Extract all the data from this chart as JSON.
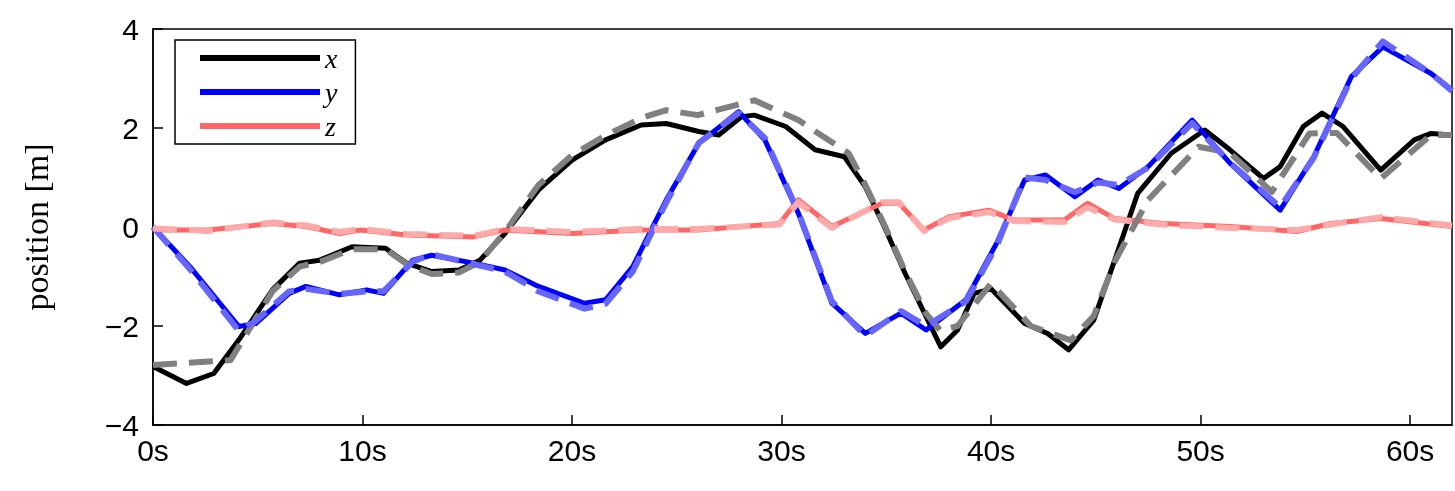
{
  "chart_data": {
    "type": "line",
    "ylabel": "position [m]",
    "xlim": [
      0,
      62
    ],
    "ylim": [
      -4,
      4
    ],
    "xticks": [
      {
        "value": 0,
        "label": "0s"
      },
      {
        "value": 10,
        "label": "10s"
      },
      {
        "value": 20,
        "label": "20s"
      },
      {
        "value": 30,
        "label": "30s"
      },
      {
        "value": 40,
        "label": "40s"
      },
      {
        "value": 50,
        "label": "50s"
      },
      {
        "value": 60,
        "label": "60s"
      }
    ],
    "yticks": [
      {
        "value": -4,
        "label": "−4"
      },
      {
        "value": -2,
        "label": "−2"
      },
      0,
      2,
      4
    ],
    "grid": false,
    "legend": "top left",
    "marker": "none",
    "series": [
      {
        "name": "x",
        "color": "#000000",
        "line_style": "solid",
        "x": [
          0,
          1.6,
          2.9,
          4.1,
          5.7,
          7,
          7.95,
          9.5,
          11.1,
          12.1,
          13.3,
          14.6,
          15.6,
          16.8,
          18.4,
          20,
          21.6,
          23.3,
          24.5,
          26.05,
          27,
          28.1,
          28.7,
          30.2,
          31.6,
          33,
          34,
          34.9,
          35.9,
          36.9,
          37.6,
          38.4,
          39.2,
          40,
          41.6,
          42.7,
          43.7,
          44.9,
          45.9,
          47,
          48.6,
          50.2,
          51.4,
          53,
          53.8,
          54.9,
          55.8,
          56.8,
          58.6,
          60.2,
          61,
          62
        ],
        "values": [
          -2.82,
          -3.16,
          -2.96,
          -2.28,
          -1.27,
          -0.73,
          -0.67,
          -0.4,
          -0.43,
          -0.73,
          -0.9,
          -0.87,
          -0.67,
          -0.13,
          0.75,
          1.35,
          1.76,
          2.06,
          2.09,
          1.93,
          1.86,
          2.23,
          2.26,
          2.03,
          1.56,
          1.42,
          0.81,
          0.01,
          -0.94,
          -1.81,
          -2.42,
          -2.08,
          -1.34,
          -1.25,
          -1.95,
          -2.15,
          -2.48,
          -1.88,
          -0.67,
          0.68,
          1.49,
          1.96,
          1.56,
          0.98,
          1.22,
          2.03,
          2.3,
          2.03,
          1.15,
          1.76,
          1.89,
          1.86
        ]
      },
      {
        "name": "y",
        "color": "#0000ff",
        "line_style": "solid",
        "x": [
          0,
          1.76,
          4.1,
          4.9,
          6.5,
          7.3,
          8.9,
          10.2,
          11,
          12.4,
          13.3,
          15.3,
          16.8,
          18.4,
          20.6,
          21.6,
          22.9,
          24.5,
          26.05,
          27.95,
          29.2,
          30.8,
          32.4,
          34,
          35.7,
          36.9,
          38.8,
          40.3,
          41.6,
          42.6,
          44,
          45.1,
          46.1,
          47.5,
          49.6,
          51.4,
          53.8,
          55.4,
          57.2,
          58.7,
          61,
          62
        ],
        "values": [
          0,
          -0.8,
          -2.01,
          -1.95,
          -1.34,
          -1.2,
          -1.37,
          -1.27,
          -1.34,
          -0.67,
          -0.57,
          -0.73,
          -0.87,
          -1.2,
          -1.54,
          -1.47,
          -0.8,
          0.55,
          1.69,
          2.33,
          1.76,
          0.28,
          -1.54,
          -2.15,
          -1.74,
          -2.08,
          -1.47,
          -0.3,
          0.95,
          1.05,
          0.61,
          0.95,
          0.78,
          1.22,
          2.16,
          1.29,
          0.34,
          1.42,
          3.04,
          3.64,
          3.1,
          2.77
        ]
      },
      {
        "name": "z",
        "color": "#ff6666",
        "line_style": "solid",
        "x": [
          0,
          2.6,
          5.7,
          7.3,
          8.9,
          9.9,
          12.1,
          15.3,
          16.8,
          20,
          23.2,
          26,
          29.9,
          30.8,
          32.4,
          34.8,
          35.6,
          36.8,
          38,
          39.9,
          41.1,
          43.5,
          44.6,
          45.9,
          48.2,
          51.4,
          54.6,
          56.2,
          58.6,
          62
        ],
        "values": [
          -0.06,
          -0.06,
          0.07,
          0.01,
          -0.13,
          -0.06,
          -0.16,
          -0.2,
          -0.06,
          -0.13,
          -0.06,
          -0.06,
          0.07,
          0.55,
          0.01,
          0.48,
          0.48,
          -0.06,
          0.21,
          0.34,
          0.14,
          0.14,
          0.48,
          0.17,
          0.07,
          0.01,
          -0.09,
          0.07,
          0.17,
          0.01
        ]
      },
      {
        "color": "#808080",
        "line_style": "dashed",
        "x": [
          0,
          3.7,
          5.7,
          7,
          8,
          9.5,
          11.1,
          12.1,
          13.3,
          14.6,
          15.6,
          16.8,
          18.4,
          20,
          21.6,
          23.3,
          24.5,
          26,
          28.7,
          30.8,
          33.2,
          34,
          34.9,
          35.9,
          36.9,
          37.6,
          38.4,
          40,
          41.9,
          43.8,
          44.9,
          45.9,
          47.5,
          49.9,
          51.4,
          53.4,
          55.2,
          56.5,
          58.6,
          61,
          62
        ],
        "values": [
          -2.79,
          -2.69,
          -1.3,
          -0.8,
          -0.7,
          -0.45,
          -0.45,
          -0.75,
          -0.95,
          -0.92,
          -0.7,
          -0.1,
          0.85,
          1.45,
          1.85,
          2.2,
          2.36,
          2.26,
          2.56,
          2.16,
          1.49,
          0.85,
          0.05,
          -0.9,
          -1.75,
          -2.1,
          -2.0,
          -1.14,
          -2.0,
          -2.29,
          -1.8,
          -0.7,
          0.55,
          1.62,
          1.5,
          0.71,
          1.89,
          1.9,
          0.98,
          1.86,
          1.86
        ]
      },
      {
        "color": "#6666ff",
        "line_style": "dashed",
        "x": [
          0,
          1.76,
          4.1,
          4.9,
          6.5,
          7.3,
          8.9,
          10.2,
          11,
          12.4,
          13.3,
          15.3,
          16.8,
          18.4,
          20.6,
          21.6,
          22.9,
          24.5,
          26.05,
          27.95,
          29.2,
          30.8,
          32.4,
          34,
          35.7,
          36.9,
          38.8,
          40.3,
          41.6,
          42.6,
          44,
          45.1,
          46.1,
          47.5,
          49.6,
          51.4,
          53.8,
          55.4,
          57.2,
          58.7,
          61,
          62
        ],
        "values": [
          0,
          -0.85,
          -2.1,
          -1.9,
          -1.3,
          -1.25,
          -1.35,
          -1.3,
          -1.3,
          -0.7,
          -0.55,
          -0.75,
          -0.9,
          -1.3,
          -1.65,
          -1.55,
          -0.9,
          0.5,
          1.7,
          2.3,
          1.8,
          0.3,
          -1.5,
          -2.2,
          -1.7,
          -2.0,
          -1.5,
          -0.35,
          1.0,
          0.95,
          0.7,
          0.9,
          0.85,
          1.2,
          2.1,
          1.3,
          0.4,
          1.4,
          3.0,
          3.75,
          3.1,
          2.75
        ]
      },
      {
        "color": "#ffaaaa",
        "line_style": "dashed",
        "x": [
          0,
          2.6,
          5.7,
          7.3,
          8.9,
          9.9,
          12.1,
          15.3,
          16.8,
          20,
          23.2,
          26,
          29.9,
          30.8,
          32.4,
          34.8,
          35.6,
          36.8,
          38,
          39.9,
          41.1,
          43.5,
          44.6,
          45.9,
          48.2,
          51.4,
          54.6,
          56.2,
          58.6,
          62
        ],
        "values": [
          -0.03,
          -0.08,
          0.09,
          0.03,
          -0.1,
          -0.04,
          -0.14,
          -0.18,
          -0.04,
          -0.1,
          -0.04,
          -0.04,
          0.05,
          0.5,
          -0.02,
          0.5,
          0.5,
          -0.08,
          0.18,
          0.3,
          0.12,
          0.1,
          0.4,
          0.15,
          0.05,
          -0.02,
          -0.06,
          0.05,
          0.2,
          0.03
        ]
      }
    ]
  }
}
